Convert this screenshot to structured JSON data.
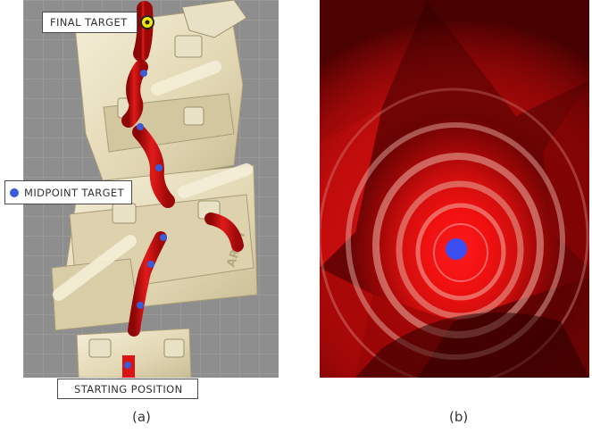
{
  "panel_a": {
    "labels": {
      "final_target": "FINAL TARGET",
      "midpoint_target": "MIDPOINT TARGET",
      "starting_position": "STARTING POSITION"
    },
    "caption": "(a)",
    "colors": {
      "background": "#8e8e8e",
      "phantom_frame": "#ece3c4",
      "vessel": "#d81414",
      "waypoint": "#3c5bd6",
      "final_target_ring": "#f2e600"
    }
  },
  "panel_b": {
    "caption": "(b)",
    "colors": {
      "vessel_wall": "#e01010",
      "target_dot": "#3b4cf0"
    }
  }
}
